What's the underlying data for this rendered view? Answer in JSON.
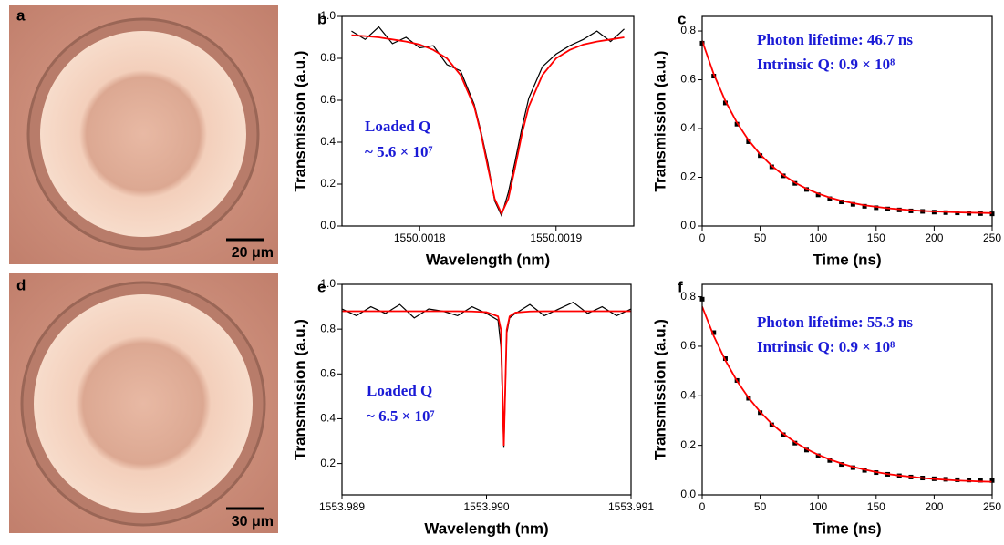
{
  "images": [
    {
      "label": "a",
      "scale_bar": "20 μm"
    },
    {
      "label": "d",
      "scale_bar": "30 μm"
    }
  ],
  "chart_data": [
    {
      "type": "line",
      "panel": "b",
      "x_label": "Wavelength (nm)",
      "y_label": "Transmission (a.u.)",
      "annotations": [
        "Loaded Q",
        "~ 5.6 × 10⁷"
      ],
      "xlim": [
        1550.001743,
        1550.001957
      ],
      "xticks": [
        1550.0018,
        1550.0019
      ],
      "ylim": [
        0,
        1
      ],
      "yticks": [
        {
          "value": 0,
          "label": "0.0"
        },
        0.2,
        0.4,
        0.6,
        0.8,
        {
          "value": 1,
          "label": "1.0"
        }
      ],
      "x": [
        1550.00175,
        1550.00176,
        1550.00177,
        1550.00178,
        1550.00179,
        1550.0018,
        1550.00181,
        1550.00182,
        1550.00183,
        1550.00184,
        1550.001845,
        1550.00185,
        1550.001855,
        1550.00186,
        1550.001865,
        1550.00187,
        1550.001875,
        1550.00188,
        1550.00189,
        1550.0019,
        1550.00191,
        1550.00192,
        1550.00193,
        1550.00194,
        1550.00195
      ],
      "series": [
        {
          "color": "#000000",
          "values": [
            0.93,
            0.89,
            0.95,
            0.87,
            0.9,
            0.85,
            0.86,
            0.77,
            0.74,
            0.58,
            0.45,
            0.3,
            0.12,
            0.05,
            0.16,
            0.31,
            0.47,
            0.61,
            0.76,
            0.82,
            0.86,
            0.89,
            0.93,
            0.88,
            0.94
          ]
        },
        {
          "color": "#ff0000",
          "values": [
            0.91,
            0.906,
            0.9,
            0.89,
            0.88,
            0.866,
            0.84,
            0.8,
            0.72,
            0.57,
            0.44,
            0.28,
            0.13,
            0.06,
            0.13,
            0.28,
            0.44,
            0.57,
            0.72,
            0.8,
            0.84,
            0.866,
            0.88,
            0.89,
            0.9
          ]
        }
      ]
    },
    {
      "type": "line",
      "panel": "c",
      "x_label": "Time (ns)",
      "y_label": "Transmission (a.u.)",
      "annotations": [
        "Photon lifetime: 46.7 ns",
        "Intrinsic Q: 0.9 × 10⁸"
      ],
      "xlim": [
        0,
        250
      ],
      "xticks": [
        0,
        50,
        100,
        150,
        200,
        250
      ],
      "ylim": [
        0,
        0.86
      ],
      "yticks": [
        {
          "value": 0,
          "label": "0.0"
        },
        0.2,
        0.4,
        0.6,
        0.8
      ],
      "x": [
        0,
        10,
        20,
        30,
        40,
        50,
        60,
        70,
        80,
        90,
        100,
        110,
        120,
        130,
        140,
        150,
        160,
        170,
        180,
        190,
        200,
        210,
        220,
        230,
        240,
        250
      ],
      "series": [
        {
          "color": "#000000",
          "marker": "square",
          "values": [
            0.75,
            0.615,
            0.505,
            0.418,
            0.346,
            0.289,
            0.243,
            0.206,
            0.175,
            0.15,
            0.128,
            0.112,
            0.099,
            0.089,
            0.081,
            0.075,
            0.07,
            0.066,
            0.062,
            0.06,
            0.057,
            0.055,
            0.054,
            0.052,
            0.051,
            0.05
          ]
        },
        {
          "color": "#ff0000",
          "values": [
            0.76,
            0.623,
            0.513,
            0.424,
            0.352,
            0.294,
            0.247,
            0.209,
            0.178,
            0.153,
            0.133,
            0.117,
            0.104,
            0.094,
            0.085,
            0.079,
            0.073,
            0.069,
            0.065,
            0.062,
            0.06,
            0.058,
            0.056,
            0.055,
            0.054,
            0.053
          ]
        }
      ]
    },
    {
      "type": "line",
      "panel": "e",
      "x_label": "Wavelength (nm)",
      "y_label": "Transmission (a.u.)",
      "annotations": [
        "Loaded Q",
        "~ 6.5 × 10⁷"
      ],
      "xlim": [
        1553.989,
        1553.991
      ],
      "xticks": [
        1553.989,
        {
          "value": 1553.99,
          "label": "1553.990"
        },
        1553.991
      ],
      "ylim": [
        0.06,
        1
      ],
      "yticks": [
        0.2,
        0.4,
        0.6,
        0.8,
        {
          "value": 1,
          "label": "1.0"
        }
      ],
      "x": [
        1553.989,
        1553.9891,
        1553.9892,
        1553.9893,
        1553.9894,
        1553.9895,
        1553.9896,
        1553.9897,
        1553.9898,
        1553.9899,
        1553.99,
        1553.99008,
        1553.9901,
        1553.99012,
        1553.99014,
        1553.99016,
        1553.9902,
        1553.9903,
        1553.9904,
        1553.9905,
        1553.9906,
        1553.9907,
        1553.9908,
        1553.9909,
        1553.991
      ],
      "series": [
        {
          "color": "#000000",
          "values": [
            0.89,
            0.86,
            0.9,
            0.87,
            0.91,
            0.85,
            0.89,
            0.88,
            0.86,
            0.9,
            0.87,
            0.84,
            0.72,
            0.27,
            0.78,
            0.85,
            0.87,
            0.91,
            0.86,
            0.89,
            0.92,
            0.87,
            0.9,
            0.86,
            0.89
          ]
        },
        {
          "color": "#ff0000",
          "values": [
            0.88,
            0.88,
            0.88,
            0.88,
            0.88,
            0.88,
            0.88,
            0.88,
            0.88,
            0.879,
            0.876,
            0.857,
            0.797,
            0.28,
            0.797,
            0.857,
            0.874,
            0.879,
            0.88,
            0.88,
            0.88,
            0.88,
            0.88,
            0.88,
            0.88
          ]
        }
      ]
    },
    {
      "type": "line",
      "panel": "f",
      "x_label": "Time (ns)",
      "y_label": "Transmission (a.u.)",
      "annotations": [
        "Photon lifetime: 55.3 ns",
        "Intrinsic Q: 0.9 × 10⁸"
      ],
      "xlim": [
        0,
        250
      ],
      "xticks": [
        0,
        50,
        100,
        150,
        200,
        250
      ],
      "ylim": [
        0,
        0.85
      ],
      "yticks": [
        {
          "value": 0,
          "label": "0.0"
        },
        0.2,
        0.4,
        0.6,
        0.8
      ],
      "x": [
        0,
        10,
        20,
        30,
        40,
        50,
        60,
        70,
        80,
        90,
        100,
        110,
        120,
        130,
        140,
        150,
        160,
        170,
        180,
        190,
        200,
        210,
        220,
        230,
        240,
        250
      ],
      "series": [
        {
          "color": "#000000",
          "marker": "square",
          "values": [
            0.79,
            0.655,
            0.55,
            0.462,
            0.39,
            0.332,
            0.283,
            0.243,
            0.209,
            0.181,
            0.158,
            0.139,
            0.123,
            0.11,
            0.099,
            0.09,
            0.083,
            0.077,
            0.072,
            0.068,
            0.065,
            0.063,
            0.061,
            0.06,
            0.059,
            0.058
          ]
        },
        {
          "color": "#ff0000",
          "values": [
            0.76,
            0.641,
            0.543,
            0.46,
            0.392,
            0.335,
            0.287,
            0.247,
            0.213,
            0.185,
            0.162,
            0.143,
            0.127,
            0.113,
            0.102,
            0.092,
            0.084,
            0.078,
            0.073,
            0.068,
            0.064,
            0.061,
            0.058,
            0.056,
            0.054,
            0.053
          ]
        }
      ]
    }
  ]
}
